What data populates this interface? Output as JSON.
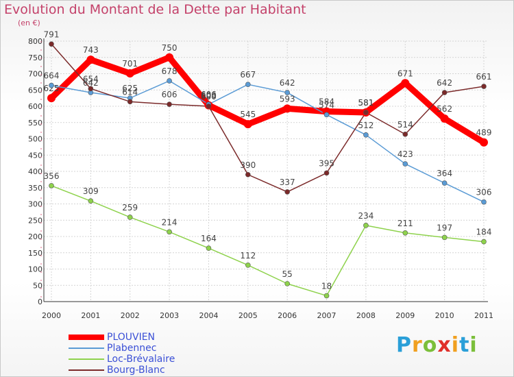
{
  "chart_data": {
    "type": "line",
    "title": "Evolution du Montant de la Dette par Habitant",
    "ylabel": "(en €)",
    "xlabel": "",
    "categories": [
      "2000",
      "2001",
      "2002",
      "2003",
      "2004",
      "2005",
      "2006",
      "2007",
      "2008",
      "2009",
      "2010",
      "2011"
    ],
    "ylim": [
      0,
      800
    ],
    "yticks": [
      0,
      50,
      100,
      150,
      200,
      250,
      300,
      350,
      400,
      450,
      500,
      550,
      600,
      650,
      700,
      750,
      800
    ],
    "grid": true,
    "legend_position": "bottom-left",
    "series": [
      {
        "name": "PLOUVIEN",
        "color": "#ff0000",
        "values": [
          625,
          743,
          701,
          750,
          603,
          545,
          593,
          584,
          581,
          671,
          562,
          489
        ]
      },
      {
        "name": "Plabennec",
        "color": "#5a9bd5",
        "values": [
          664,
          642,
          625,
          678,
          606,
          667,
          642,
          574,
          512,
          423,
          364,
          306
        ]
      },
      {
        "name": "Loc-Brévalaire",
        "color": "#8ed24c",
        "values": [
          356,
          309,
          259,
          214,
          164,
          112,
          55,
          18,
          234,
          211,
          197,
          184
        ]
      },
      {
        "name": "Bourg-Blanc",
        "color": "#7b2a2a",
        "values": [
          791,
          654,
          614,
          606,
          600,
          390,
          337,
          395,
          581,
          514,
          642,
          661
        ]
      }
    ]
  },
  "brand": {
    "letters": [
      "P",
      "r",
      "o",
      "x",
      "i",
      "t",
      "i"
    ],
    "colors": [
      "#2a9fd8",
      "#f0a020",
      "#7bbf3a",
      "#e0302a",
      "#f0a020",
      "#2a9fd8",
      "#7bbf3a"
    ]
  }
}
